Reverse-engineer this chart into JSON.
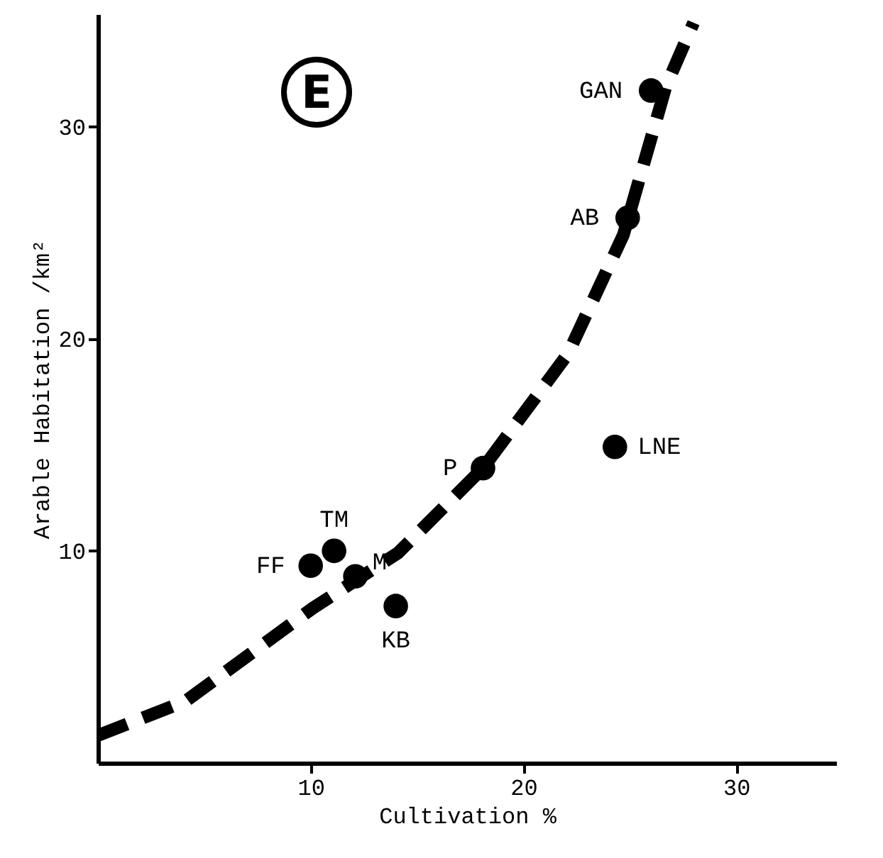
{
  "chart_data": {
    "type": "scatter",
    "xlabel": "Cultivation    %",
    "ylabel": "Arable Habitation  /km²",
    "xlim": [
      0,
      34.7
    ],
    "ylim": [
      0,
      35.3
    ],
    "xticks": [
      10,
      20,
      30
    ],
    "yticks": [
      10,
      20,
      30
    ],
    "grid": false,
    "marker": "circle",
    "series": [
      {
        "color": "#000000",
        "x": [
          26.0,
          24.9,
          24.3,
          18.1,
          11.1,
          10.0,
          12.1,
          14.0
        ],
        "values": [
          31.7,
          25.7,
          14.9,
          13.9,
          10.0,
          9.3,
          8.8,
          7.4
        ]
      },
      {
        "type": "line",
        "line_style": "dashed",
        "marker": "none",
        "color": "#000000",
        "x": [
          0,
          4.1,
          10.1,
          14.1,
          18.1,
          22.1,
          24.7,
          26.7,
          28.0
        ],
        "values": [
          1.3,
          2.9,
          7.3,
          9.9,
          13.9,
          19.3,
          24.9,
          31.9,
          34.9
        ]
      }
    ],
    "annotations": [
      "E",
      {
        "text": "GAN",
        "x": 26.0,
        "y": 31.7
      },
      {
        "text": "AB",
        "x": 24.9,
        "y": 25.7
      },
      {
        "text": "LNE",
        "x": 24.3,
        "y": 14.9
      },
      {
        "text": "P",
        "x": 18.1,
        "y": 13.9
      },
      {
        "text": "TM",
        "x": 11.1,
        "y": 10.0
      },
      {
        "text": "FF",
        "x": 10.0,
        "y": 9.3
      },
      {
        "text": "M",
        "x": 12.1,
        "y": 8.8
      },
      {
        "text": "KB",
        "x": 14.0,
        "y": 7.4
      }
    ]
  }
}
